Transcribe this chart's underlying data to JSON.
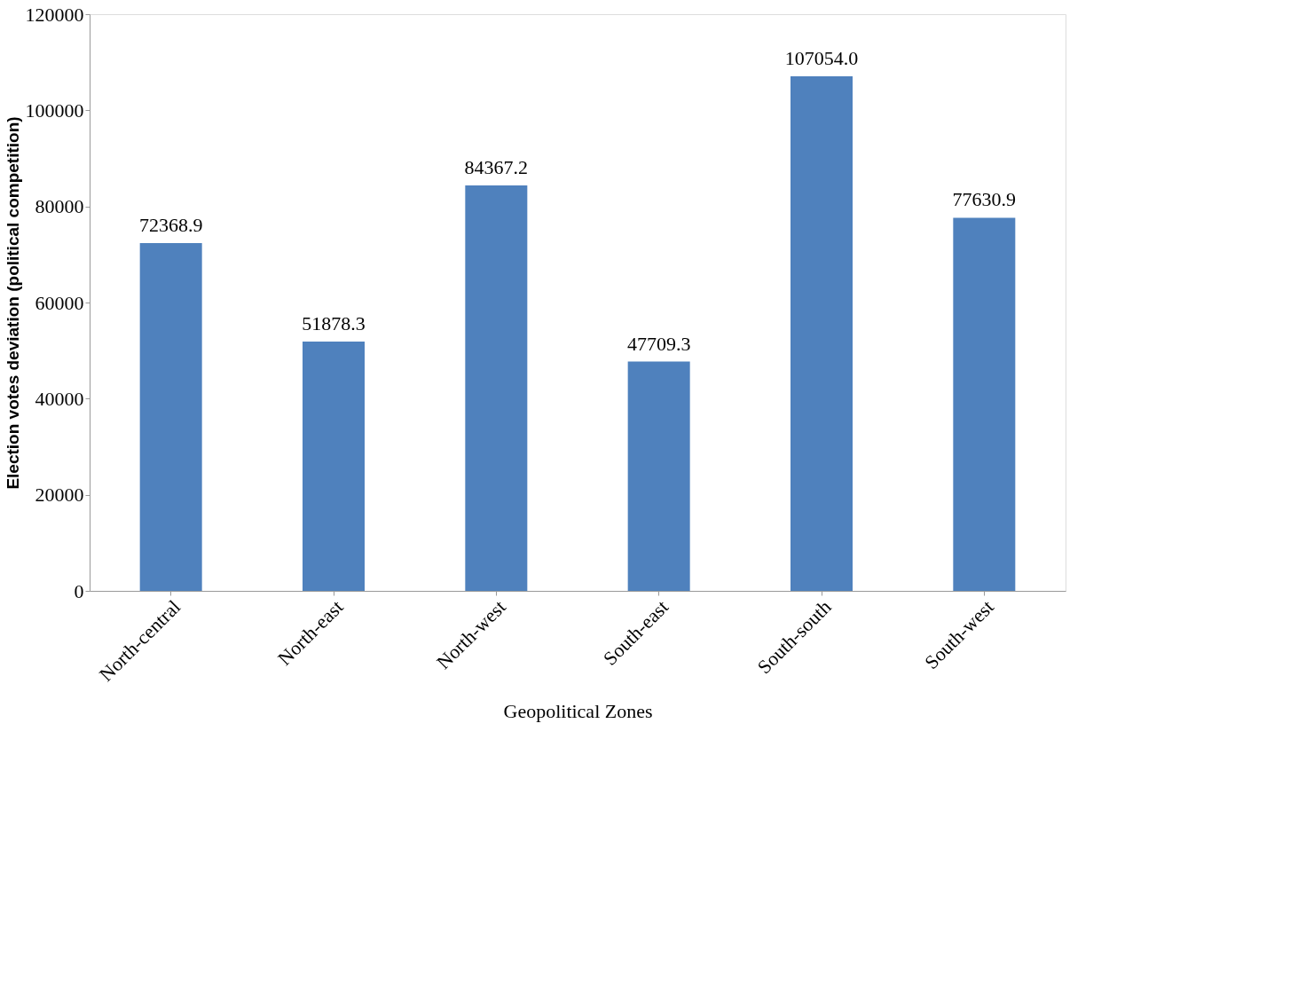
{
  "chart_data": {
    "type": "bar",
    "xlabel": "Geopolitical Zones",
    "ylabel": "Election votes deviation (political competition)",
    "categories": [
      "North-central",
      "North-east",
      "North-west",
      "South-east",
      "South-south",
      "South-west"
    ],
    "values": [
      72368.9,
      51878.3,
      84367.2,
      47709.3,
      107054.0,
      77630.9
    ],
    "value_labels": [
      "72368.9",
      "51878.3",
      "84367.2",
      "47709.3",
      "107054.0",
      "77630.9"
    ],
    "color": "#4f81bd",
    "ylim": [
      0,
      120000
    ],
    "yticks": [
      0,
      20000,
      40000,
      60000,
      80000,
      100000,
      120000
    ],
    "grid": false
  }
}
